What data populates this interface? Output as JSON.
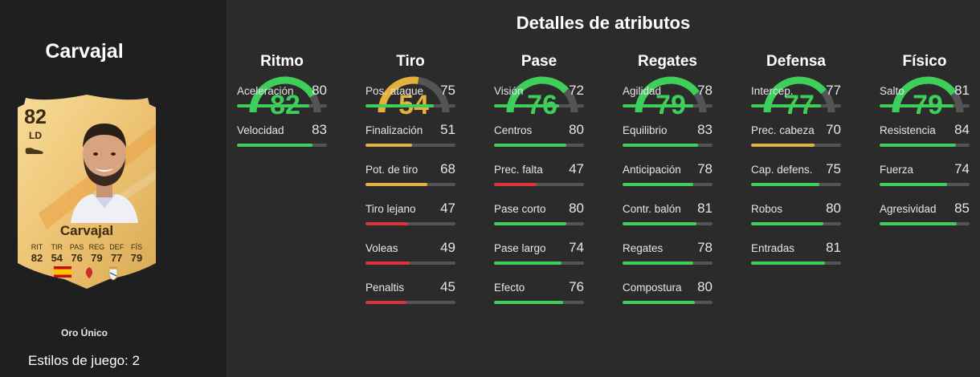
{
  "player": {
    "name": "Carvajal",
    "rating": "82",
    "position": "LD",
    "card_name": "Carvajal",
    "card_stats": [
      {
        "label": "RIT",
        "value": "82"
      },
      {
        "label": "TIR",
        "value": "54"
      },
      {
        "label": "PAS",
        "value": "76"
      },
      {
        "label": "REG",
        "value": "79"
      },
      {
        "label": "DEF",
        "value": "77"
      },
      {
        "label": "FÍS",
        "value": "79"
      }
    ],
    "card_type": "Oro Único",
    "playstyles": "Estilos de juego: 2"
  },
  "title": "Detalles de atributos",
  "colors": {
    "green": "#3ecf5a",
    "yellow": "#e6b13a",
    "red": "#e0323a",
    "track": "#545454"
  },
  "categories": [
    {
      "name": "Ritmo",
      "value": "82",
      "level": "green",
      "attributes": [
        {
          "name": "Aceleración",
          "value": "80",
          "level": "green"
        },
        {
          "name": "Velocidad",
          "value": "83",
          "level": "green"
        }
      ]
    },
    {
      "name": "Tiro",
      "value": "54",
      "level": "yellow",
      "attributes": [
        {
          "name": "Pos. ataque",
          "value": "75",
          "level": "green"
        },
        {
          "name": "Finalización",
          "value": "51",
          "level": "yellow"
        },
        {
          "name": "Pot. de tiro",
          "value": "68",
          "level": "yellow"
        },
        {
          "name": "Tiro lejano",
          "value": "47",
          "level": "red"
        },
        {
          "name": "Voleas",
          "value": "49",
          "level": "red"
        },
        {
          "name": "Penaltis",
          "value": "45",
          "level": "red"
        }
      ]
    },
    {
      "name": "Pase",
      "value": "76",
      "level": "green",
      "attributes": [
        {
          "name": "Visión",
          "value": "72",
          "level": "green"
        },
        {
          "name": "Centros",
          "value": "80",
          "level": "green"
        },
        {
          "name": "Prec. falta",
          "value": "47",
          "level": "red"
        },
        {
          "name": "Pase corto",
          "value": "80",
          "level": "green"
        },
        {
          "name": "Pase largo",
          "value": "74",
          "level": "green"
        },
        {
          "name": "Efecto",
          "value": "76",
          "level": "green"
        }
      ]
    },
    {
      "name": "Regates",
      "value": "79",
      "level": "green",
      "attributes": [
        {
          "name": "Agilidad",
          "value": "78",
          "level": "green"
        },
        {
          "name": "Equilibrio",
          "value": "83",
          "level": "green"
        },
        {
          "name": "Anticipación",
          "value": "78",
          "level": "green"
        },
        {
          "name": "Contr. balón",
          "value": "81",
          "level": "green"
        },
        {
          "name": "Regates",
          "value": "78",
          "level": "green"
        },
        {
          "name": "Compostura",
          "value": "80",
          "level": "green"
        }
      ]
    },
    {
      "name": "Defensa",
      "value": "77",
      "level": "green",
      "attributes": [
        {
          "name": "Intercep.",
          "value": "77",
          "level": "green"
        },
        {
          "name": "Prec. cabeza",
          "value": "70",
          "level": "yellow"
        },
        {
          "name": "Cap. defens.",
          "value": "75",
          "level": "green"
        },
        {
          "name": "Robos",
          "value": "80",
          "level": "green"
        },
        {
          "name": "Entradas",
          "value": "81",
          "level": "green"
        }
      ]
    },
    {
      "name": "Físico",
      "value": "79",
      "level": "green",
      "attributes": [
        {
          "name": "Salto",
          "value": "81",
          "level": "green"
        },
        {
          "name": "Resistencia",
          "value": "84",
          "level": "green"
        },
        {
          "name": "Fuerza",
          "value": "74",
          "level": "green"
        },
        {
          "name": "Agresividad",
          "value": "85",
          "level": "green"
        }
      ]
    }
  ]
}
